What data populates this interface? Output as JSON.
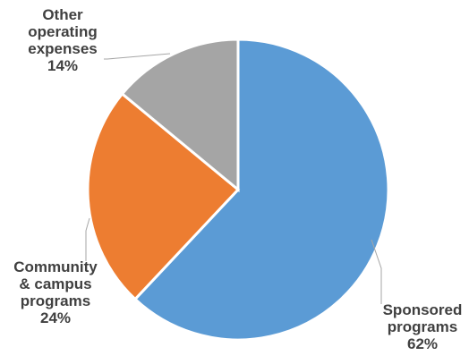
{
  "chart_data": {
    "type": "pie",
    "title": "",
    "slices": [
      {
        "label": [
          "Sponsored",
          "programs"
        ],
        "percent_label": "62%",
        "value": 62,
        "color": "#5B9BD5"
      },
      {
        "label": [
          "Community",
          "& campus",
          "programs"
        ],
        "percent_label": "24%",
        "value": 24,
        "color": "#ED7D31"
      },
      {
        "label": [
          "Other",
          "operating",
          "expenses"
        ],
        "percent_label": "14%",
        "value": 14,
        "color": "#A5A5A5"
      }
    ],
    "start_angle": "12 o'clock",
    "direction": "clockwise",
    "legend": "none",
    "data_labels": "outside with leader lines"
  }
}
